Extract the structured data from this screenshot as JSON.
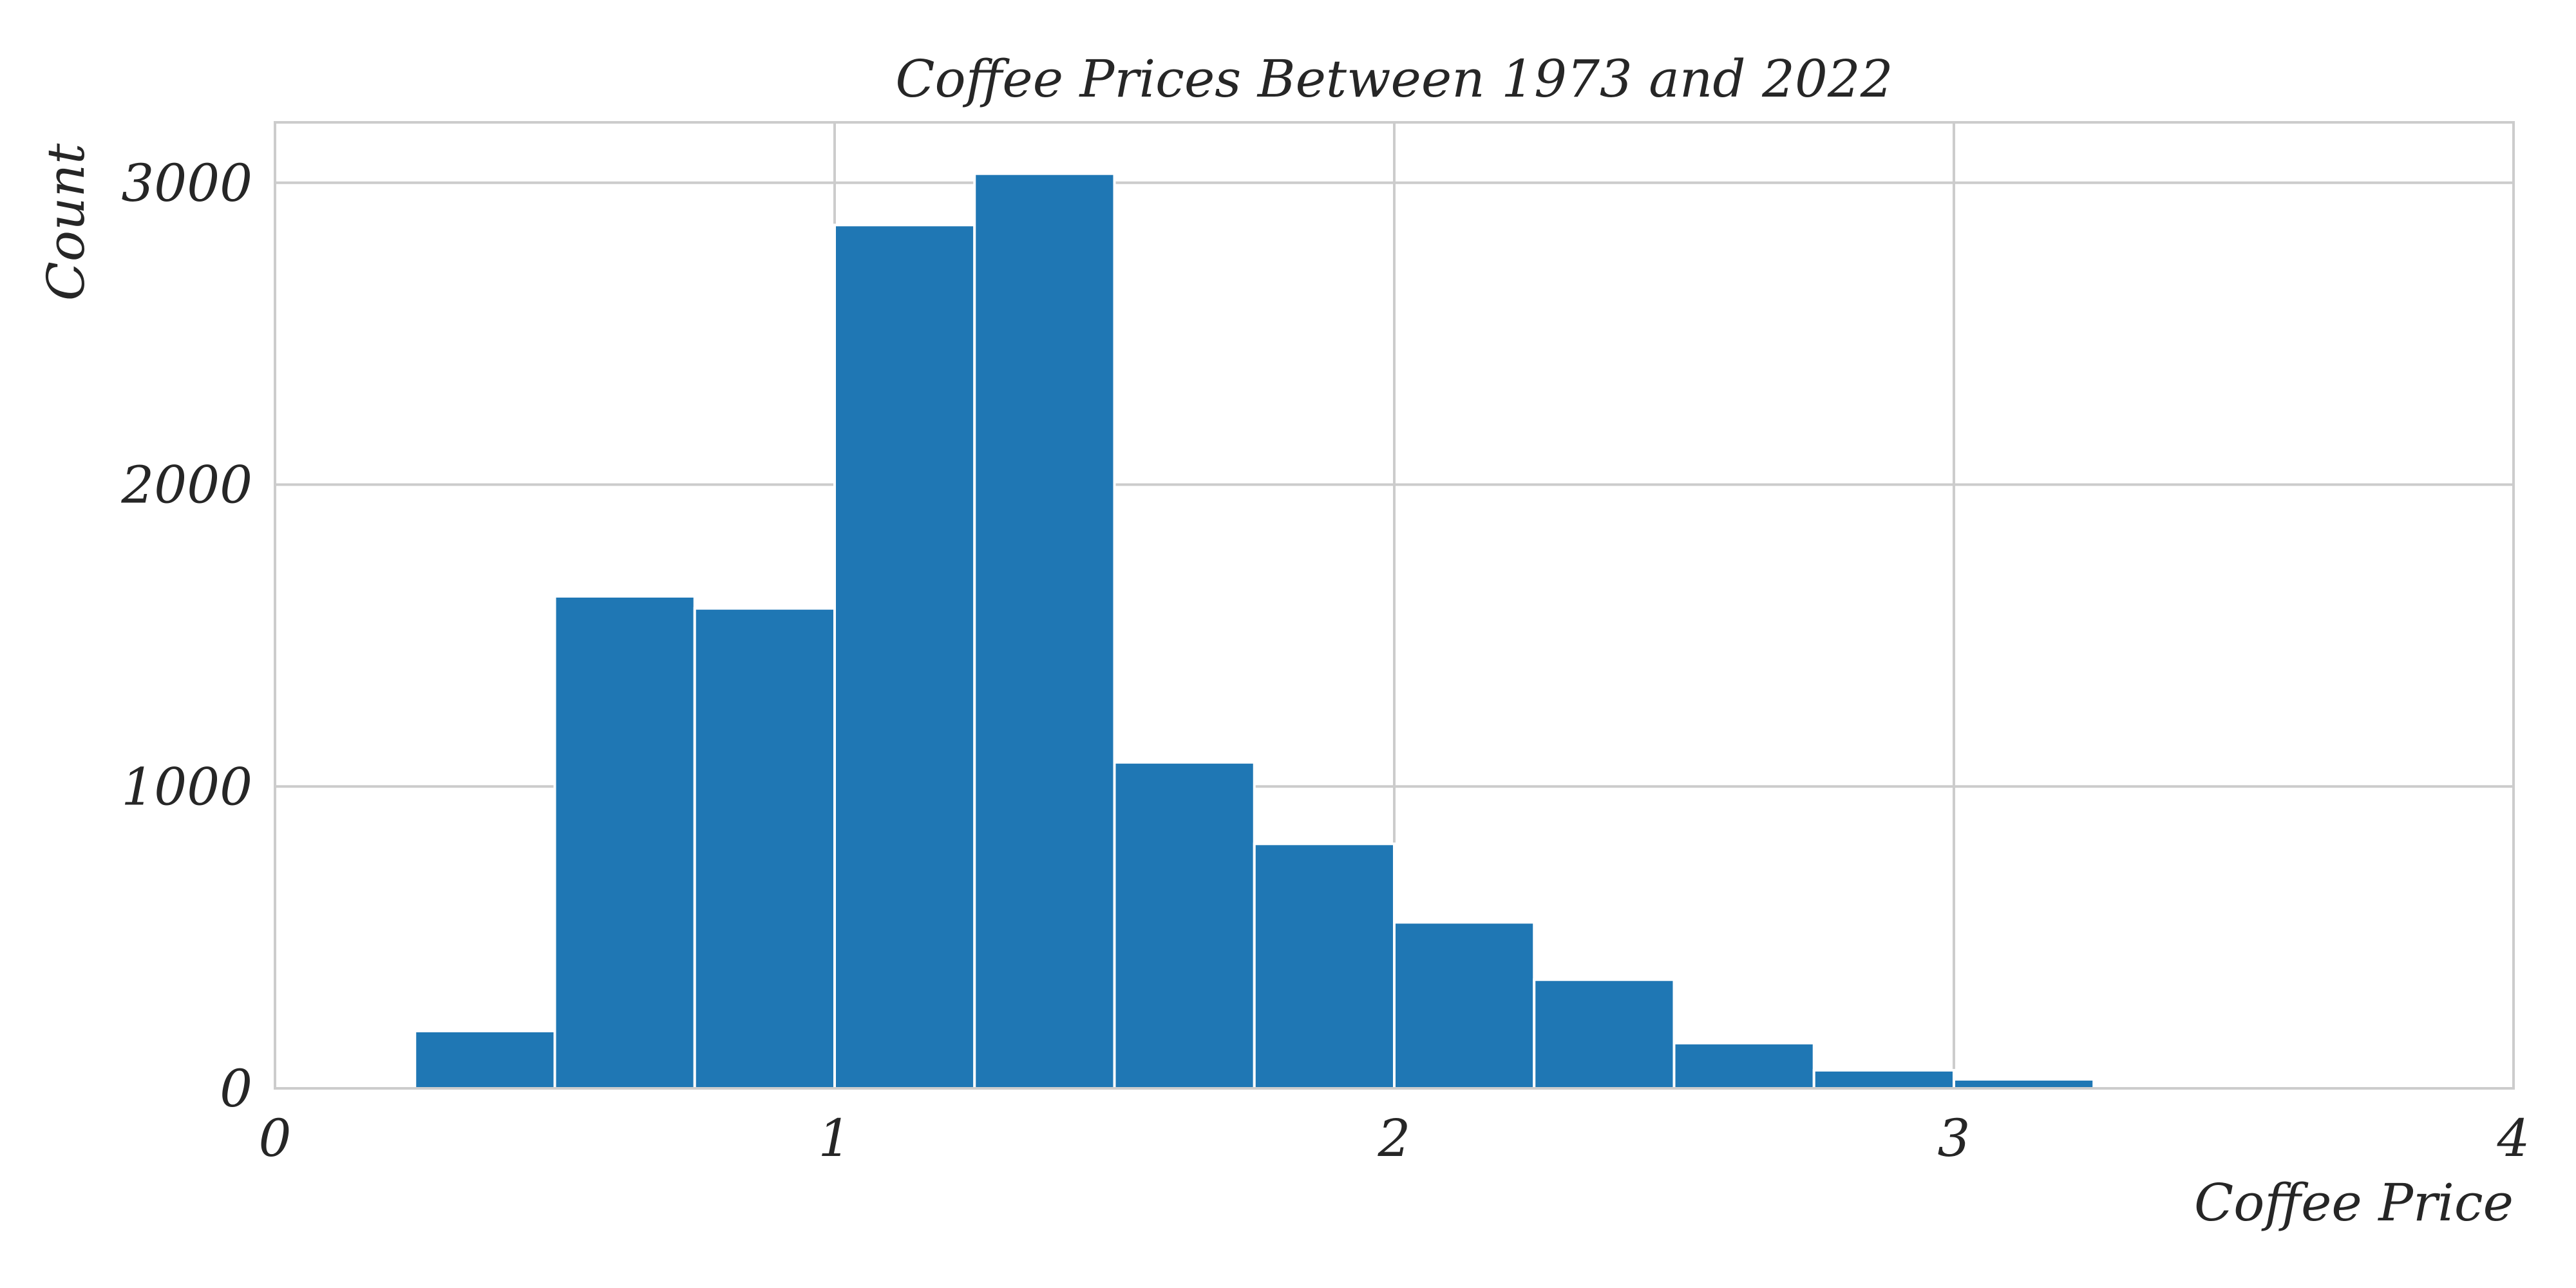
{
  "chart_data": {
    "type": "bar",
    "title": "Coffee Prices Between 1973 and 2022",
    "xlabel": "Coffee Price",
    "ylabel": "Count",
    "xlim": [
      0,
      4
    ],
    "ylim": [
      0,
      3200
    ],
    "x_ticks": [
      "0",
      "1",
      "2",
      "3",
      "4"
    ],
    "y_ticks": [
      "0",
      "1000",
      "2000",
      "3000"
    ],
    "grid": true,
    "bar_color": "#1f77b4",
    "bins": [
      {
        "x0": 0.25,
        "x1": 0.5,
        "count": 190
      },
      {
        "x0": 0.5,
        "x1": 0.75,
        "count": 1630
      },
      {
        "x0": 0.75,
        "x1": 1.0,
        "count": 1590
      },
      {
        "x0": 1.0,
        "x1": 1.25,
        "count": 2860
      },
      {
        "x0": 1.25,
        "x1": 1.5,
        "count": 3030
      },
      {
        "x0": 1.5,
        "x1": 1.75,
        "count": 1080
      },
      {
        "x0": 1.75,
        "x1": 2.0,
        "count": 810
      },
      {
        "x0": 2.0,
        "x1": 2.25,
        "count": 550
      },
      {
        "x0": 2.25,
        "x1": 2.5,
        "count": 360
      },
      {
        "x0": 2.5,
        "x1": 2.75,
        "count": 150
      },
      {
        "x0": 2.75,
        "x1": 3.0,
        "count": 60
      },
      {
        "x0": 3.0,
        "x1": 3.25,
        "count": 30
      }
    ]
  }
}
